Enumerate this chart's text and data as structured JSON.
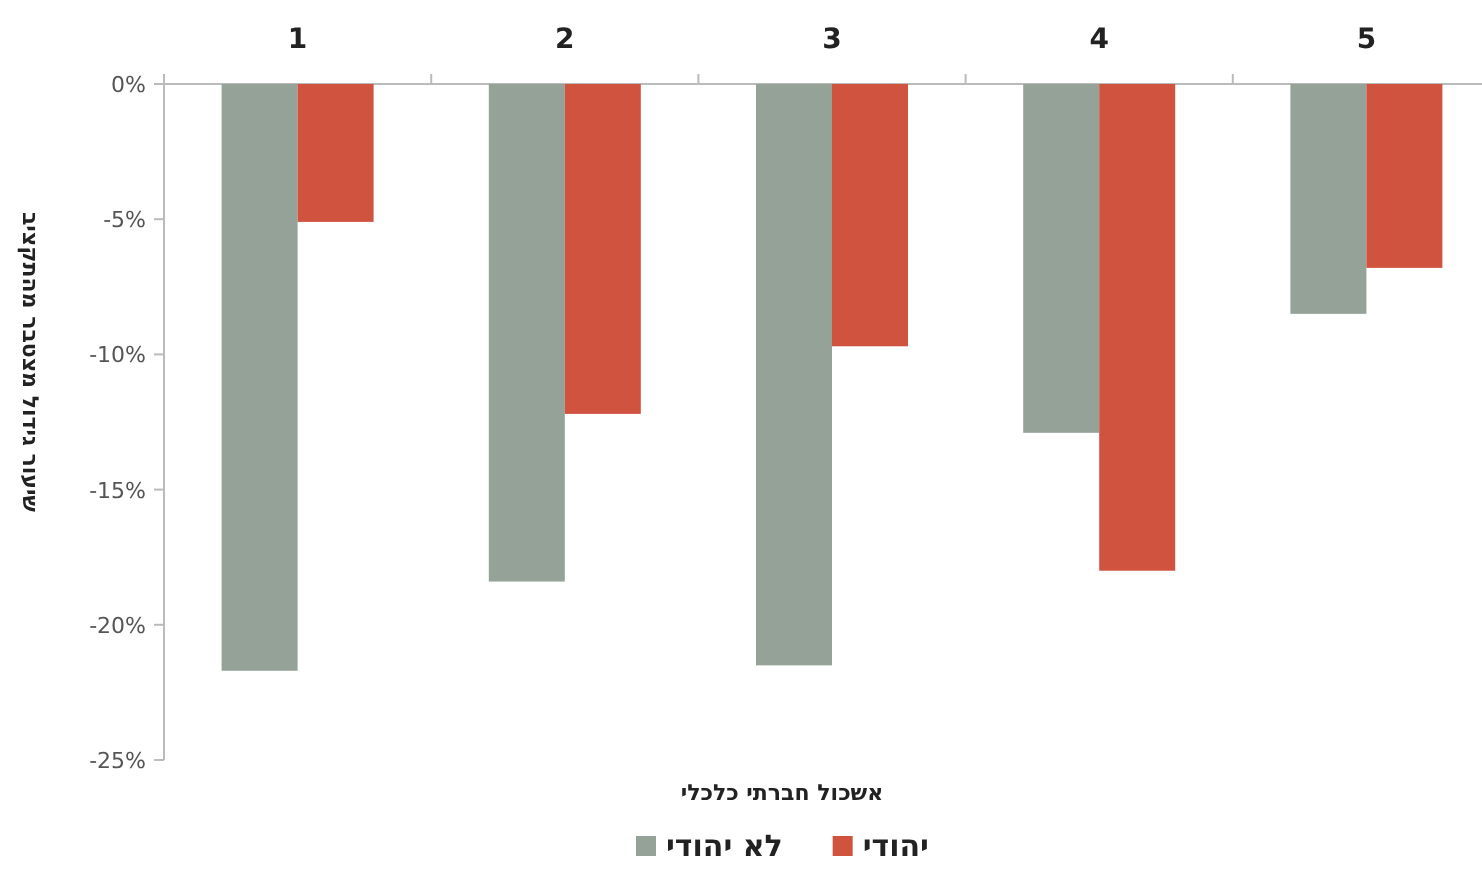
{
  "chart_data": {
    "type": "bar",
    "xlabel": "אשכול חברתי כלכלי",
    "ylabel": "שיעור גידול מצטבר מהתקציב",
    "categories": [
      "1",
      "2",
      "3",
      "4",
      "5"
    ],
    "series": [
      {
        "name": "לא יהודי",
        "color": "#94a298",
        "values": [
          -21.7,
          -18.4,
          -21.5,
          -12.9,
          -8.5
        ]
      },
      {
        "name": "יהודי",
        "color": "#d0533f",
        "values": [
          -5.1,
          -12.2,
          -9.7,
          -18.0,
          -6.8
        ]
      }
    ],
    "ylim": [
      -25,
      0
    ],
    "yticks": [
      {
        "value": 0,
        "label": "0%"
      },
      {
        "value": -5,
        "label": "-5%"
      },
      {
        "value": -10,
        "label": "-10%"
      },
      {
        "value": -15,
        "label": "-15%"
      },
      {
        "value": -20,
        "label": "-20%"
      },
      {
        "value": -25,
        "label": "-25%"
      }
    ],
    "grid": false,
    "legend": "bottom"
  }
}
